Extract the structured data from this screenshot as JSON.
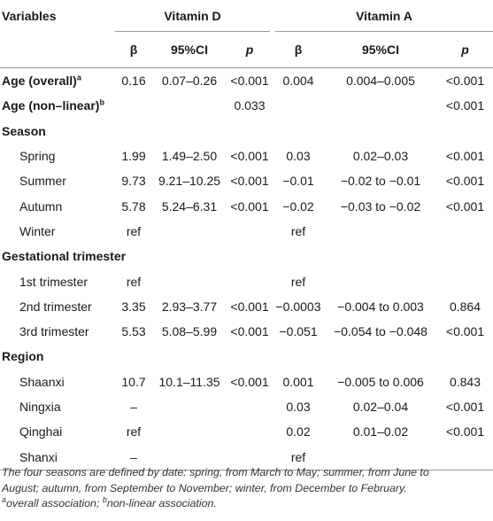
{
  "header": {
    "variables_label": "Variables",
    "group_vitamin_d": "Vitamin D",
    "group_vitamin_a": "Vitamin A",
    "beta": "β",
    "ci": "95%CI",
    "p": "p"
  },
  "rows": [
    {
      "type": "data",
      "label": "Age (overall)",
      "sup": "a",
      "bold": true,
      "vd_beta": "0.16",
      "vd_ci": "0.07–0.26",
      "vd_p": "<0.001",
      "va_beta": "0.004",
      "va_ci": "0.004–0.005",
      "va_p": "<0.001"
    },
    {
      "type": "data",
      "label": "Age (non–linear)",
      "sup": "b",
      "bold": true,
      "vd_beta": "",
      "vd_ci": "",
      "vd_p": "0.033",
      "va_beta": "",
      "va_ci": "",
      "va_p": "<0.001"
    },
    {
      "type": "section",
      "label": "Season"
    },
    {
      "type": "data",
      "label": "Spring",
      "indent": true,
      "vd_beta": "1.99",
      "vd_ci": "1.49–2.50",
      "vd_p": "<0.001",
      "va_beta": "0.03",
      "va_ci": "0.02–0.03",
      "va_p": "<0.001"
    },
    {
      "type": "data",
      "label": "Summer",
      "indent": true,
      "vd_beta": "9.73",
      "vd_ci": "9.21–10.25",
      "vd_p": "<0.001",
      "va_beta": "−0.01",
      "va_ci": "−0.02 to −0.01",
      "va_p": "<0.001"
    },
    {
      "type": "data",
      "label": "Autumn",
      "indent": true,
      "vd_beta": "5.78",
      "vd_ci": "5.24–6.31",
      "vd_p": "<0.001",
      "va_beta": "−0.02",
      "va_ci": "−0.03 to −0.02",
      "va_p": "<0.001"
    },
    {
      "type": "data",
      "label": "Winter",
      "indent": true,
      "vd_beta": "ref",
      "vd_ci": "",
      "vd_p": "",
      "va_beta": "ref",
      "va_ci": "",
      "va_p": ""
    },
    {
      "type": "section",
      "label": "Gestational trimester"
    },
    {
      "type": "data",
      "label": "1st trimester",
      "indent": true,
      "vd_beta": "ref",
      "vd_ci": "",
      "vd_p": "",
      "va_beta": "ref",
      "va_ci": "",
      "va_p": ""
    },
    {
      "type": "data",
      "label": "2nd trimester",
      "indent": true,
      "vd_beta": "3.35",
      "vd_ci": "2.93–3.77",
      "vd_p": "<0.001",
      "va_beta": "−0.0003",
      "va_ci": "−0.004 to 0.003",
      "va_p": "0.864"
    },
    {
      "type": "data",
      "label": "3rd trimester",
      "indent": true,
      "vd_beta": "5.53",
      "vd_ci": "5.08–5.99",
      "vd_p": "<0.001",
      "va_beta": "−0.051",
      "va_ci": "−0.054 to −0.048",
      "va_p": "<0.001"
    },
    {
      "type": "section",
      "label": "Region"
    },
    {
      "type": "data",
      "label": "Shaanxi",
      "indent": true,
      "vd_beta": "10.7",
      "vd_ci": "10.1–11.35",
      "vd_p": "<0.001",
      "va_beta": "0.001",
      "va_ci": "−0.005 to 0.006",
      "va_p": "0.843"
    },
    {
      "type": "data",
      "label": "Ningxia",
      "indent": true,
      "vd_beta": "–",
      "vd_ci": "",
      "vd_p": "",
      "va_beta": "0.03",
      "va_ci": "0.02–0.04",
      "va_p": "<0.001"
    },
    {
      "type": "data",
      "label": "Qinghai",
      "indent": true,
      "vd_beta": "ref",
      "vd_ci": "",
      "vd_p": "",
      "va_beta": "0.02",
      "va_ci": "0.01–0.02",
      "va_p": "<0.001"
    },
    {
      "type": "data",
      "label": "Shanxi",
      "indent": true,
      "vd_beta": "–",
      "vd_ci": "",
      "vd_p": "",
      "va_beta": "ref",
      "va_ci": "",
      "va_p": ""
    }
  ],
  "notes": {
    "line1": "The four seasons are defined by date: spring, from March to May; summer, from June to",
    "line2": "August; autumn, from September to November; winter, from December to February.",
    "sup_a": "a",
    "note_a": "overall association;",
    "sup_b": "b",
    "note_b": "non-linear association."
  }
}
